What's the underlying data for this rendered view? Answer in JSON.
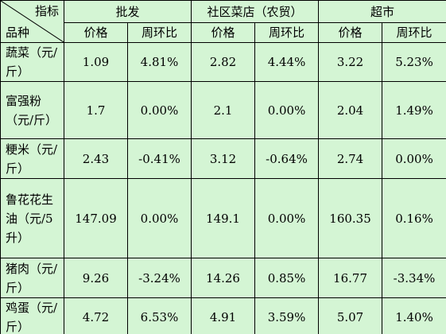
{
  "header": {
    "corner_top": "指标",
    "corner_bottom": "品种",
    "groups": [
      "批发",
      "社区菜店（农贸）",
      "超市"
    ],
    "subheaders": [
      "价格",
      "周环比",
      "价格",
      "周环比",
      "价格",
      "周环比"
    ]
  },
  "table": {
    "rows": [
      {
        "label": "蔬菜（元/斤）",
        "cells": [
          "1.09",
          "4.81%",
          "2.82",
          "4.44%",
          "3.22",
          "5.23%"
        ]
      },
      {
        "label": "富强粉（元/斤）",
        "cells": [
          "1.7",
          "0.00%",
          "2.1",
          "0.00%",
          "2.04",
          "1.49%"
        ]
      },
      {
        "label": "粳米（元/斤）",
        "cells": [
          "2.43",
          "-0.41%",
          "3.12",
          "-0.64%",
          "2.74",
          "0.00%"
        ]
      },
      {
        "label": "鲁花花生油（元/5升）",
        "cells": [
          "147.09",
          "0.00%",
          "149.1",
          "0.00%",
          "160.35",
          "0.16%"
        ]
      },
      {
        "label": "猪肉（元/斤）",
        "cells": [
          "9.26",
          "-3.24%",
          "14.26",
          "0.85%",
          "16.77",
          "-3.34%"
        ]
      },
      {
        "label": "鸡蛋（元/斤）",
        "cells": [
          "4.72",
          "6.53%",
          "4.91",
          "3.59%",
          "5.07",
          "1.40%"
        ]
      }
    ]
  }
}
